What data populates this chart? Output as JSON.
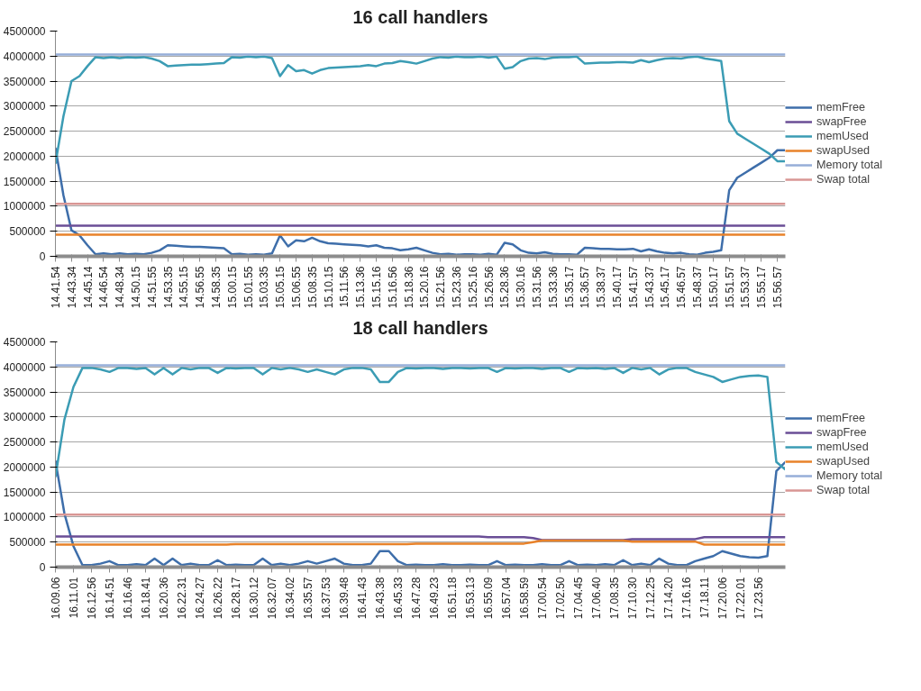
{
  "chart_data": [
    {
      "type": "line",
      "title": "16 call handlers",
      "categories": [
        "14.41.54",
        null,
        "14.43.34",
        null,
        "14.45.14",
        null,
        "14.46.54",
        null,
        "14.48.34",
        null,
        "14.50.15",
        null,
        "14.51.55",
        null,
        "14.53.35",
        null,
        "14.55.15",
        null,
        "14.56.55",
        null,
        "14.58.35",
        null,
        "15.00.15",
        null,
        "15.01.55",
        null,
        "15.03.35",
        null,
        "15.05.15",
        null,
        "15.06.55",
        null,
        "15.08.35",
        null,
        "15.10.15",
        null,
        "15.11.56",
        null,
        "15.13.36",
        null,
        "15.15.16",
        null,
        "15.16.56",
        null,
        "15.18.36",
        null,
        "15.20.16",
        null,
        "15.21.56",
        null,
        "15.23.36",
        null,
        "15.25.16",
        null,
        "15.26.56",
        null,
        "15.28.36",
        null,
        "15.30.16",
        null,
        "15.31.56",
        null,
        "15.33.36",
        null,
        "15.35.17",
        null,
        "15.36.57",
        null,
        "15.38.37",
        null,
        "15.40.17",
        null,
        "15.41.57",
        null,
        "15.43.37",
        null,
        "15.45.17",
        null,
        "15.46.57",
        null,
        "15.48.37",
        null,
        "15.50.17",
        null,
        "15.51.57",
        null,
        "15.53.37",
        null,
        "15.55.17",
        null,
        "15.56.57",
        null
      ],
      "ylim": [
        0,
        4500000
      ],
      "yticks": [
        0,
        500000,
        1000000,
        1500000,
        2000000,
        2500000,
        3000000,
        3500000,
        4000000,
        4500000
      ],
      "grid": "y",
      "legend": "right",
      "series": [
        {
          "name": "memFree",
          "color": "#3e6eaa",
          "values": [
            2170000,
            1220000,
            520000,
            420000,
            220000,
            40000,
            60000,
            40000,
            60000,
            40000,
            50000,
            40000,
            70000,
            120000,
            220000,
            210000,
            200000,
            190000,
            190000,
            180000,
            170000,
            160000,
            40000,
            50000,
            30000,
            40000,
            30000,
            60000,
            420000,
            200000,
            320000,
            300000,
            370000,
            300000,
            260000,
            250000,
            240000,
            230000,
            220000,
            200000,
            220000,
            170000,
            160000,
            120000,
            140000,
            170000,
            120000,
            70000,
            40000,
            50000,
            30000,
            40000,
            40000,
            30000,
            50000,
            30000,
            270000,
            240000,
            120000,
            70000,
            60000,
            80000,
            50000,
            40000,
            40000,
            30000,
            170000,
            160000,
            150000,
            150000,
            140000,
            140000,
            150000,
            100000,
            140000,
            100000,
            70000,
            60000,
            70000,
            40000,
            30000,
            70000,
            90000,
            120000,
            1320000,
            1570000,
            1670000,
            1770000,
            1870000,
            1970000,
            2120000,
            2120000
          ]
        },
        {
          "name": "swapFree",
          "color": "#6a4e96",
          "values": [
            610000,
            610000,
            610000,
            610000,
            610000,
            610000,
            610000,
            610000,
            610000,
            610000,
            610000,
            610000,
            610000,
            610000,
            610000,
            610000,
            610000,
            610000,
            610000,
            610000,
            610000,
            610000,
            610000,
            610000,
            610000,
            610000,
            610000,
            610000,
            610000,
            610000,
            610000,
            610000,
            610000,
            610000,
            610000,
            610000,
            610000,
            610000,
            610000,
            610000,
            610000,
            610000,
            610000,
            610000,
            610000,
            610000,
            610000,
            610000,
            610000,
            610000,
            610000,
            610000,
            610000,
            610000,
            610000,
            610000,
            610000,
            610000,
            610000,
            610000,
            610000,
            610000,
            610000,
            610000,
            610000,
            610000,
            610000,
            610000,
            610000,
            610000,
            610000,
            610000,
            610000,
            610000,
            610000,
            610000,
            610000,
            610000,
            610000,
            610000,
            610000,
            610000,
            610000,
            610000,
            610000,
            610000,
            610000,
            610000,
            610000,
            610000,
            610000,
            610000
          ]
        },
        {
          "name": "memUsed",
          "color": "#3b9cb4",
          "values": [
            1850000,
            2800000,
            3500000,
            3600000,
            3800000,
            3980000,
            3960000,
            3980000,
            3960000,
            3980000,
            3970000,
            3980000,
            3950000,
            3900000,
            3800000,
            3810000,
            3820000,
            3830000,
            3830000,
            3840000,
            3850000,
            3860000,
            3980000,
            3970000,
            3990000,
            3980000,
            3990000,
            3960000,
            3600000,
            3820000,
            3700000,
            3720000,
            3650000,
            3720000,
            3760000,
            3770000,
            3780000,
            3790000,
            3800000,
            3820000,
            3800000,
            3850000,
            3860000,
            3900000,
            3880000,
            3850000,
            3900000,
            3950000,
            3980000,
            3970000,
            3990000,
            3980000,
            3980000,
            3990000,
            3970000,
            3990000,
            3750000,
            3780000,
            3900000,
            3950000,
            3960000,
            3940000,
            3970000,
            3980000,
            3980000,
            3990000,
            3850000,
            3860000,
            3870000,
            3870000,
            3880000,
            3880000,
            3870000,
            3920000,
            3880000,
            3920000,
            3950000,
            3960000,
            3950000,
            3980000,
            3990000,
            3950000,
            3930000,
            3900000,
            2700000,
            2450000,
            2350000,
            2250000,
            2150000,
            2050000,
            1900000,
            1900000
          ]
        },
        {
          "name": "swapUsed",
          "color": "#e8822a",
          "values": [
            430000,
            430000,
            430000,
            430000,
            430000,
            430000,
            430000,
            430000,
            430000,
            430000,
            430000,
            430000,
            430000,
            430000,
            430000,
            430000,
            430000,
            430000,
            430000,
            430000,
            430000,
            430000,
            430000,
            430000,
            430000,
            430000,
            430000,
            430000,
            430000,
            430000,
            430000,
            430000,
            430000,
            430000,
            430000,
            430000,
            430000,
            430000,
            430000,
            430000,
            430000,
            430000,
            430000,
            430000,
            430000,
            430000,
            430000,
            430000,
            430000,
            430000,
            430000,
            430000,
            430000,
            430000,
            430000,
            430000,
            430000,
            430000,
            430000,
            430000,
            430000,
            430000,
            430000,
            430000,
            430000,
            430000,
            430000,
            430000,
            430000,
            430000,
            430000,
            430000,
            430000,
            430000,
            430000,
            430000,
            430000,
            430000,
            430000,
            430000,
            430000,
            430000,
            430000,
            430000,
            430000,
            430000,
            430000,
            430000,
            430000,
            430000,
            430000,
            430000
          ]
        },
        {
          "name": "Memory total",
          "color": "#96aed8",
          "values": [
            4030000,
            4030000,
            4030000,
            4030000,
            4030000,
            4030000,
            4030000,
            4030000,
            4030000,
            4030000,
            4030000,
            4030000,
            4030000,
            4030000,
            4030000,
            4030000,
            4030000,
            4030000,
            4030000,
            4030000,
            4030000,
            4030000,
            4030000,
            4030000,
            4030000,
            4030000,
            4030000,
            4030000,
            4030000,
            4030000,
            4030000,
            4030000,
            4030000,
            4030000,
            4030000,
            4030000,
            4030000,
            4030000,
            4030000,
            4030000,
            4030000,
            4030000,
            4030000,
            4030000,
            4030000,
            4030000,
            4030000,
            4030000,
            4030000,
            4030000,
            4030000,
            4030000,
            4030000,
            4030000,
            4030000,
            4030000,
            4030000,
            4030000,
            4030000,
            4030000,
            4030000,
            4030000,
            4030000,
            4030000,
            4030000,
            4030000,
            4030000,
            4030000,
            4030000,
            4030000,
            4030000,
            4030000,
            4030000,
            4030000,
            4030000,
            4030000,
            4030000,
            4030000,
            4030000,
            4030000,
            4030000,
            4030000,
            4030000,
            4030000,
            4030000,
            4030000,
            4030000,
            4030000,
            4030000,
            4030000,
            4030000,
            4030000
          ]
        },
        {
          "name": "Swap total",
          "color": "#d99694",
          "values": [
            1050000,
            1050000,
            1050000,
            1050000,
            1050000,
            1050000,
            1050000,
            1050000,
            1050000,
            1050000,
            1050000,
            1050000,
            1050000,
            1050000,
            1050000,
            1050000,
            1050000,
            1050000,
            1050000,
            1050000,
            1050000,
            1050000,
            1050000,
            1050000,
            1050000,
            1050000,
            1050000,
            1050000,
            1050000,
            1050000,
            1050000,
            1050000,
            1050000,
            1050000,
            1050000,
            1050000,
            1050000,
            1050000,
            1050000,
            1050000,
            1050000,
            1050000,
            1050000,
            1050000,
            1050000,
            1050000,
            1050000,
            1050000,
            1050000,
            1050000,
            1050000,
            1050000,
            1050000,
            1050000,
            1050000,
            1050000,
            1050000,
            1050000,
            1050000,
            1050000,
            1050000,
            1050000,
            1050000,
            1050000,
            1050000,
            1050000,
            1050000,
            1050000,
            1050000,
            1050000,
            1050000,
            1050000,
            1050000,
            1050000,
            1050000,
            1050000,
            1050000,
            1050000,
            1050000,
            1050000,
            1050000,
            1050000,
            1050000,
            1050000,
            1050000,
            1050000,
            1050000,
            1050000,
            1050000,
            1050000,
            1050000,
            1050000
          ]
        }
      ]
    },
    {
      "type": "line",
      "title": "18 call handlers",
      "categories": [
        "16.09.06",
        null,
        "16.11.01",
        null,
        "16.12.56",
        null,
        "16.14.51",
        null,
        "16.16.46",
        null,
        "16.18.41",
        null,
        "16.20.36",
        null,
        "16.22.31",
        null,
        "16.24.27",
        null,
        "16.26.22",
        null,
        "16.28.17",
        null,
        "16.30.12",
        null,
        "16.32.07",
        null,
        "16.34.02",
        null,
        "16.35.57",
        null,
        "16.37.53",
        null,
        "16.39.48",
        null,
        "16.41.43",
        null,
        "16.43.38",
        null,
        "16.45.33",
        null,
        "16.47.28",
        null,
        "16.49.23",
        null,
        "16.51.18",
        null,
        "16.53.13",
        null,
        "16.55.09",
        null,
        "16.57.04",
        null,
        "16.58.59",
        null,
        "17.00.54",
        null,
        "17.02.50",
        null,
        "17.04.45",
        null,
        "17.06.40",
        null,
        "17.08.35",
        null,
        "17.10.30",
        null,
        "17.12.25",
        null,
        "17.14.20",
        null,
        "17.16.16",
        null,
        "17.18.11",
        null,
        "17.20.06",
        null,
        "17.22.01",
        null,
        "17.23.56",
        null,
        null,
        null
      ],
      "ylim": [
        0,
        4500000
      ],
      "yticks": [
        0,
        500000,
        1000000,
        1500000,
        2000000,
        2500000,
        3000000,
        3500000,
        4000000,
        4500000
      ],
      "grid": "y",
      "legend": "right",
      "series": [
        {
          "name": "memFree",
          "color": "#3e6eaa",
          "values": [
            2130000,
            1070000,
            420000,
            40000,
            40000,
            70000,
            120000,
            40000,
            40000,
            60000,
            40000,
            170000,
            40000,
            170000,
            40000,
            70000,
            40000,
            40000,
            140000,
            40000,
            50000,
            40000,
            40000,
            170000,
            40000,
            70000,
            40000,
            70000,
            120000,
            70000,
            120000,
            170000,
            70000,
            40000,
            40000,
            70000,
            320000,
            320000,
            120000,
            40000,
            50000,
            40000,
            40000,
            60000,
            40000,
            40000,
            50000,
            40000,
            40000,
            120000,
            40000,
            50000,
            40000,
            40000,
            60000,
            40000,
            40000,
            120000,
            40000,
            50000,
            40000,
            60000,
            40000,
            140000,
            40000,
            70000,
            40000,
            170000,
            70000,
            40000,
            40000,
            120000,
            170000,
            220000,
            320000,
            270000,
            220000,
            200000,
            190000,
            220000,
            1920000,
            2100000
          ]
        },
        {
          "name": "swapFree",
          "color": "#6a4e96",
          "values": [
            610000,
            610000,
            610000,
            610000,
            610000,
            610000,
            610000,
            610000,
            610000,
            610000,
            610000,
            610000,
            610000,
            610000,
            610000,
            610000,
            610000,
            610000,
            610000,
            610000,
            610000,
            610000,
            610000,
            610000,
            610000,
            610000,
            610000,
            610000,
            610000,
            610000,
            610000,
            610000,
            610000,
            610000,
            610000,
            610000,
            610000,
            610000,
            610000,
            610000,
            610000,
            610000,
            610000,
            610000,
            610000,
            610000,
            610000,
            610000,
            600000,
            600000,
            600000,
            600000,
            600000,
            580000,
            540000,
            540000,
            540000,
            540000,
            540000,
            540000,
            540000,
            540000,
            540000,
            540000,
            560000,
            560000,
            560000,
            560000,
            560000,
            560000,
            560000,
            560000,
            600000,
            600000,
            600000,
            600000,
            600000,
            600000,
            600000,
            600000,
            600000,
            600000
          ]
        },
        {
          "name": "memUsed",
          "color": "#3b9cb4",
          "values": [
            1800000,
            2950000,
            3600000,
            3980000,
            3980000,
            3950000,
            3900000,
            3980000,
            3980000,
            3960000,
            3980000,
            3850000,
            3980000,
            3850000,
            3980000,
            3950000,
            3980000,
            3980000,
            3880000,
            3980000,
            3970000,
            3980000,
            3980000,
            3850000,
            3980000,
            3950000,
            3980000,
            3950000,
            3900000,
            3950000,
            3900000,
            3850000,
            3950000,
            3980000,
            3980000,
            3950000,
            3700000,
            3700000,
            3900000,
            3980000,
            3970000,
            3980000,
            3980000,
            3960000,
            3980000,
            3980000,
            3970000,
            3980000,
            3980000,
            3900000,
            3980000,
            3970000,
            3980000,
            3980000,
            3960000,
            3980000,
            3980000,
            3900000,
            3980000,
            3970000,
            3980000,
            3960000,
            3980000,
            3880000,
            3980000,
            3950000,
            3980000,
            3850000,
            3950000,
            3980000,
            3980000,
            3900000,
            3850000,
            3800000,
            3700000,
            3750000,
            3800000,
            3820000,
            3830000,
            3800000,
            2100000,
            1950000
          ]
        },
        {
          "name": "swapUsed",
          "color": "#e8822a",
          "values": [
            450000,
            450000,
            450000,
            450000,
            450000,
            450000,
            450000,
            450000,
            450000,
            450000,
            450000,
            450000,
            450000,
            450000,
            450000,
            450000,
            450000,
            450000,
            450000,
            450000,
            460000,
            460000,
            460000,
            460000,
            460000,
            460000,
            460000,
            460000,
            460000,
            460000,
            460000,
            460000,
            460000,
            460000,
            460000,
            460000,
            460000,
            460000,
            460000,
            460000,
            470000,
            470000,
            470000,
            470000,
            470000,
            470000,
            470000,
            470000,
            470000,
            470000,
            470000,
            470000,
            470000,
            500000,
            530000,
            530000,
            530000,
            530000,
            530000,
            530000,
            530000,
            530000,
            530000,
            530000,
            510000,
            510000,
            510000,
            510000,
            510000,
            510000,
            510000,
            510000,
            450000,
            450000,
            450000,
            450000,
            450000,
            450000,
            450000,
            450000,
            450000,
            450000
          ]
        },
        {
          "name": "Memory total",
          "color": "#96aed8",
          "values": [
            4030000,
            4030000,
            4030000,
            4030000,
            4030000,
            4030000,
            4030000,
            4030000,
            4030000,
            4030000,
            4030000,
            4030000,
            4030000,
            4030000,
            4030000,
            4030000,
            4030000,
            4030000,
            4030000,
            4030000,
            4030000,
            4030000,
            4030000,
            4030000,
            4030000,
            4030000,
            4030000,
            4030000,
            4030000,
            4030000,
            4030000,
            4030000,
            4030000,
            4030000,
            4030000,
            4030000,
            4030000,
            4030000,
            4030000,
            4030000,
            4030000,
            4030000,
            4030000,
            4030000,
            4030000,
            4030000,
            4030000,
            4030000,
            4030000,
            4030000,
            4030000,
            4030000,
            4030000,
            4030000,
            4030000,
            4030000,
            4030000,
            4030000,
            4030000,
            4030000,
            4030000,
            4030000,
            4030000,
            4030000,
            4030000,
            4030000,
            4030000,
            4030000,
            4030000,
            4030000,
            4030000,
            4030000,
            4030000,
            4030000,
            4030000,
            4030000,
            4030000,
            4030000,
            4030000,
            4030000,
            4030000,
            4030000
          ]
        },
        {
          "name": "Swap total",
          "color": "#d99694",
          "values": [
            1050000,
            1050000,
            1050000,
            1050000,
            1050000,
            1050000,
            1050000,
            1050000,
            1050000,
            1050000,
            1050000,
            1050000,
            1050000,
            1050000,
            1050000,
            1050000,
            1050000,
            1050000,
            1050000,
            1050000,
            1050000,
            1050000,
            1050000,
            1050000,
            1050000,
            1050000,
            1050000,
            1050000,
            1050000,
            1050000,
            1050000,
            1050000,
            1050000,
            1050000,
            1050000,
            1050000,
            1050000,
            1050000,
            1050000,
            1050000,
            1050000,
            1050000,
            1050000,
            1050000,
            1050000,
            1050000,
            1050000,
            1050000,
            1050000,
            1050000,
            1050000,
            1050000,
            1050000,
            1050000,
            1050000,
            1050000,
            1050000,
            1050000,
            1050000,
            1050000,
            1050000,
            1050000,
            1050000,
            1050000,
            1050000,
            1050000,
            1050000,
            1050000,
            1050000,
            1050000,
            1050000,
            1050000,
            1050000,
            1050000,
            1050000,
            1050000,
            1050000,
            1050000,
            1050000,
            1050000,
            1050000,
            1050000
          ]
        }
      ]
    }
  ]
}
